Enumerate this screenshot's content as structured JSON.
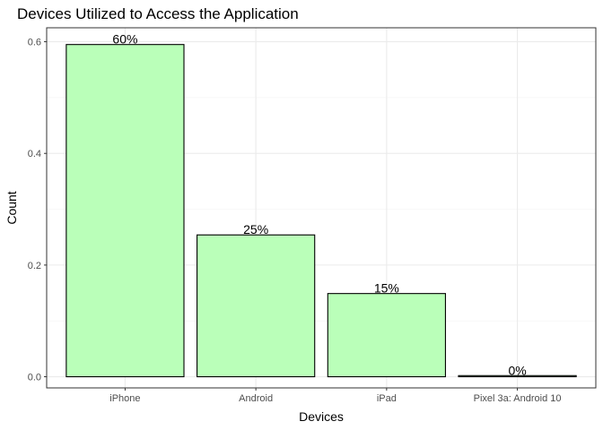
{
  "chart_data": {
    "type": "bar",
    "title": "Devices Utilized to Access the Application",
    "xlabel": "Devices",
    "ylabel": "Count",
    "categories": [
      "iPhone",
      "Android",
      "iPad",
      "Pixel 3a: Android 10"
    ],
    "values": [
      0.595,
      0.254,
      0.149,
      0.002
    ],
    "data_labels": [
      "60%",
      "25%",
      "15%",
      "0%"
    ],
    "y_ticks": [
      0.0,
      0.2,
      0.4,
      0.6
    ],
    "y_tick_labels": [
      "0.0",
      "0.2",
      "0.4",
      "0.6"
    ],
    "ylim": [
      -0.02,
      0.625
    ],
    "grid": true,
    "bar_fill": "#baffb9",
    "bar_outline": "#000000",
    "theme": "bw"
  }
}
